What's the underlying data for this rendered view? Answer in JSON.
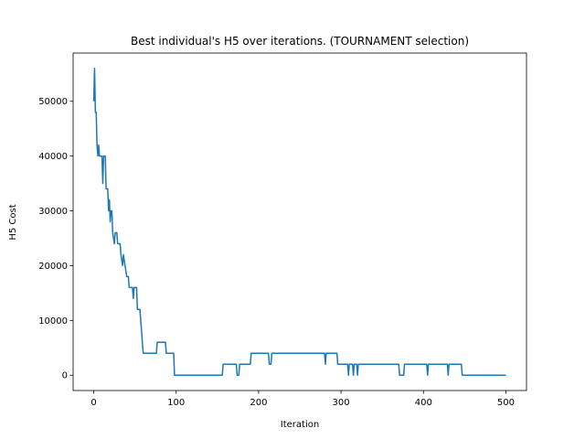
{
  "chart_data": {
    "type": "line",
    "title": "Best individual's H5 over iterations. (TOURNAMENT selection)",
    "x_label": "Iteration",
    "y_label": "H5 Cost",
    "xlim": [
      -25,
      525
    ],
    "ylim": [
      -2800,
      58800
    ],
    "xticks": [
      0,
      100,
      200,
      300,
      400,
      500
    ],
    "yticks": [
      0,
      10000,
      20000,
      30000,
      40000,
      50000
    ],
    "series": [
      {
        "color": "#1f77b4",
        "x": [
          0,
          1,
          2,
          3,
          4,
          5,
          6,
          7,
          10,
          11,
          12,
          14,
          15,
          17,
          18,
          19,
          20,
          21,
          22,
          23,
          25,
          26,
          28,
          29,
          32,
          33,
          35,
          36,
          38,
          40,
          42,
          43,
          47,
          48,
          49,
          52,
          53,
          56,
          57,
          58,
          60,
          76,
          77,
          87,
          88,
          97,
          98,
          156,
          157,
          173,
          174,
          176,
          177,
          190,
          191,
          212,
          213,
          215,
          216,
          280,
          281,
          282,
          295,
          296,
          308,
          309,
          310,
          314,
          315,
          316,
          319,
          320,
          321,
          370,
          371,
          376,
          377,
          404,
          405,
          406,
          429,
          430,
          431,
          446,
          447,
          500
        ],
        "values": [
          50000,
          56000,
          48000,
          48000,
          42000,
          40000,
          42000,
          40000,
          40000,
          35000,
          40000,
          40000,
          34000,
          34000,
          30000,
          32000,
          28000,
          30000,
          30000,
          26000,
          24000,
          26000,
          26000,
          24000,
          24000,
          22000,
          20000,
          22000,
          20000,
          18000,
          18000,
          16000,
          16000,
          14000,
          16000,
          16000,
          12000,
          12000,
          10000,
          8000,
          4000,
          4000,
          6000,
          6000,
          4000,
          4000,
          0,
          0,
          2000,
          2000,
          0,
          0,
          2000,
          2000,
          4000,
          4000,
          2000,
          2000,
          4000,
          4000,
          2000,
          4000,
          4000,
          2000,
          2000,
          0,
          2000,
          2000,
          0,
          2000,
          2000,
          0,
          2000,
          2000,
          0,
          0,
          2000,
          2000,
          0,
          2000,
          2000,
          0,
          2000,
          2000,
          0,
          0
        ]
      }
    ]
  }
}
